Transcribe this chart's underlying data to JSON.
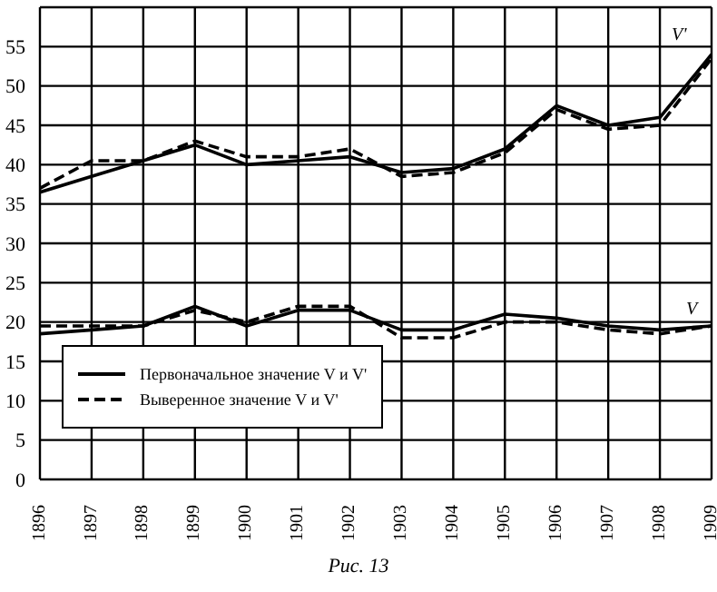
{
  "chart_data": {
    "type": "line",
    "x": [
      1896,
      1897,
      1898,
      1899,
      1900,
      1901,
      1902,
      1903,
      1904,
      1905,
      1906,
      1907,
      1908,
      1909
    ],
    "series": [
      {
        "name": "Первоначальное значение V и V'",
        "color": "#000000",
        "line_style": "solid",
        "values": [
          36.5,
          38.5,
          40.5,
          42.5,
          40,
          40.5,
          41,
          39,
          39.5,
          42,
          47.5,
          45,
          46,
          54
        ]
      },
      {
        "name": "Выверенное значение V и V'",
        "color": "#000000",
        "line_style": "dashed",
        "values": [
          37,
          40.5,
          40.5,
          43,
          41,
          41,
          42,
          38.5,
          39,
          41.5,
          47,
          44.5,
          45,
          53.5
        ]
      },
      {
        "color": "#000000",
        "line_style": "solid",
        "values": [
          18.5,
          19,
          19.5,
          22,
          19.5,
          21.5,
          21.5,
          19,
          19,
          21,
          20.5,
          19.5,
          19,
          19.5
        ]
      },
      {
        "color": "#000000",
        "line_style": "dashed",
        "values": [
          19.5,
          19.5,
          19.5,
          21.5,
          20,
          22,
          22,
          18,
          18,
          20,
          20,
          19,
          18.5,
          19.5
        ]
      }
    ],
    "xlim": [
      1896,
      1909
    ],
    "xticks": [
      1896,
      1897,
      1898,
      1899,
      1900,
      1901,
      1902,
      1903,
      1904,
      1905,
      1906,
      1907,
      1908,
      1909
    ],
    "ylim": [
      0,
      60
    ],
    "yticks": [
      0,
      5,
      10,
      15,
      20,
      25,
      30,
      35,
      40,
      45,
      50,
      55,
      {
        "value": 60,
        "label": null
      }
    ],
    "grid": true,
    "legend": "bottom left",
    "marker": "none",
    "annotations": [
      "V'",
      "V",
      "Рис. 13"
    ]
  }
}
